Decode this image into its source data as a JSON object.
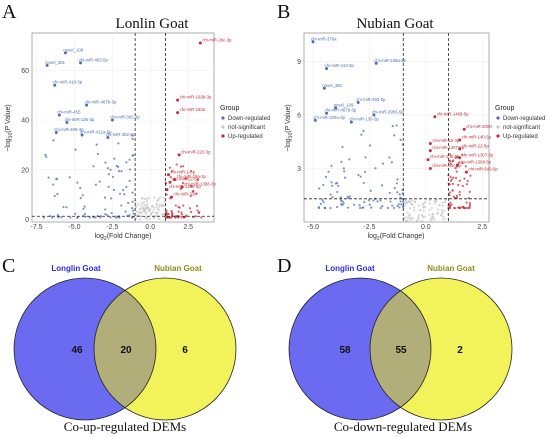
{
  "colors": {
    "down": "#4c72b0",
    "ns": "#c8c8c8",
    "up": "#c0313b",
    "venn_left": "#6b6bf2",
    "venn_right": "#f2f25a",
    "venn_overlap": "#b1ae7a",
    "venn_left_label": "#2a2ae6",
    "venn_right_label": "#8e8e1a"
  },
  "panels": {
    "a": {
      "letter": "A",
      "title": "Lonlin Goat"
    },
    "b": {
      "letter": "B",
      "title": "Nubian Goat"
    },
    "c": {
      "letter": "C",
      "caption": "Co-up-regulated DEMs"
    },
    "d": {
      "letter": "D",
      "caption": "Co-down-regulated DEMs"
    }
  },
  "legend": {
    "title": "Group",
    "entries": [
      "Down-regulated",
      "not-significant",
      "Up-regulated"
    ]
  },
  "chart_data": [
    {
      "type": "scatter",
      "title": "Lonlin Goat",
      "xlabel": "log2(Fold Change)",
      "ylabel": "-log10(P Value)",
      "xlim": [
        -7.8,
        4.2
      ],
      "ylim": [
        -1,
        75
      ],
      "x_ticks": [
        -7.5,
        -5.0,
        -2.5,
        0.0,
        2.5
      ],
      "y_ticks": [
        0,
        20,
        40,
        60
      ],
      "thresholds": {
        "x": [
          -1,
          1
        ],
        "y": 1.3
      },
      "labeled_points": [
        {
          "x": 3.3,
          "y": 71,
          "label": "chi-miR-29c-3p",
          "group": "Up-regulated"
        },
        {
          "x": 1.8,
          "y": 48,
          "label": "chi-miR-193b-3p",
          "group": "Up-regulated"
        },
        {
          "x": 1.8,
          "y": 43,
          "label": "chi-miR-193a",
          "group": "Up-regulated"
        },
        {
          "x": 1.9,
          "y": 26,
          "label": "chi-miR-222-3p",
          "group": "Up-regulated"
        },
        {
          "x": 1.2,
          "y": 18,
          "label": "chi-miR-1-3p",
          "group": "Up-regulated"
        },
        {
          "x": 1.6,
          "y": 16,
          "label": "chi-miR-29a-3p",
          "group": "Up-regulated"
        },
        {
          "x": 1.3,
          "y": 15,
          "label": "chi-miR-22-5p",
          "group": "Up-regulated"
        },
        {
          "x": 2.1,
          "y": 13,
          "label": "chi-miR-1388-3p",
          "group": "Up-regulated"
        },
        {
          "x": 1.1,
          "y": 12,
          "label": "chi-miR-1388-5p",
          "group": "Up-regulated"
        },
        {
          "x": 1.4,
          "y": 9,
          "label": "chi-miR-338",
          "group": "Up-regulated"
        },
        {
          "x": -5.6,
          "y": 67,
          "label": "novel_109",
          "group": "Down-regulated"
        },
        {
          "x": -6.8,
          "y": 62,
          "label": "novel_381",
          "group": "Down-regulated"
        },
        {
          "x": -4.6,
          "y": 63,
          "label": "chi-miR-493-5p",
          "group": "Down-regulated"
        },
        {
          "x": -6.3,
          "y": 54,
          "label": "chi-miR-410-3p",
          "group": "Down-regulated"
        },
        {
          "x": -4.2,
          "y": 46,
          "label": "chi-miR-487b-3p",
          "group": "Down-regulated"
        },
        {
          "x": -6.0,
          "y": 42,
          "label": "chi-miR-455",
          "group": "Down-regulated"
        },
        {
          "x": -5.5,
          "y": 39,
          "label": "chi-miR-136-3p",
          "group": "Down-regulated"
        },
        {
          "x": -2.5,
          "y": 40,
          "label": "chi-miR-382-3p",
          "group": "Down-regulated"
        },
        {
          "x": -6.2,
          "y": 35,
          "label": "chi-miR-409-3p",
          "group": "Down-regulated"
        },
        {
          "x": -4.5,
          "y": 34,
          "label": "chi-miR-411a-5p",
          "group": "Down-regulated"
        },
        {
          "x": -2.8,
          "y": 33,
          "label": "chi-miR-382-5p",
          "group": "Down-regulated"
        }
      ]
    },
    {
      "type": "scatter",
      "title": "Nubian Goat",
      "xlabel": "log2(Fold Change)",
      "ylabel": "-log10(P Value)",
      "xlim": [
        -5.4,
        2.8
      ],
      "ylim": [
        0,
        10.6
      ],
      "x_ticks": [
        -5.0,
        -2.5,
        0.0,
        2.5
      ],
      "y_ticks": [
        3,
        6,
        9
      ],
      "thresholds": {
        "x": [
          -1,
          1
        ],
        "y": 1.3
      },
      "labeled_points": [
        {
          "x": -5.0,
          "y": 10.1,
          "label": "chi-miR-376a",
          "group": "Down-regulated"
        },
        {
          "x": -4.4,
          "y": 8.6,
          "label": "chi-miR-410-3p",
          "group": "Down-regulated"
        },
        {
          "x": -2.2,
          "y": 8.9,
          "label": "chi-miR-199a-3p",
          "group": "Down-regulated"
        },
        {
          "x": -4.5,
          "y": 7.5,
          "label": "novel_381",
          "group": "Down-regulated"
        },
        {
          "x": -3.0,
          "y": 6.7,
          "label": "chi-miR-493-5p",
          "group": "Down-regulated"
        },
        {
          "x": -4.0,
          "y": 6.4,
          "label": "novel_109",
          "group": "Down-regulated"
        },
        {
          "x": -4.4,
          "y": 6.1,
          "label": "chi-miR-487b-3p",
          "group": "Down-regulated"
        },
        {
          "x": -2.3,
          "y": 6.0,
          "label": "chi-miR-3955-5p",
          "group": "Down-regulated"
        },
        {
          "x": -4.9,
          "y": 5.7,
          "label": "chi-miR-329a-3p",
          "group": "Down-regulated"
        },
        {
          "x": -3.3,
          "y": 5.6,
          "label": "chi-miR-136-3p",
          "group": "Down-regulated"
        },
        {
          "x": 0.4,
          "y": 5.9,
          "label": "chi-miR-1468-5p",
          "group": "Up-regulated"
        },
        {
          "x": 1.5,
          "y": 4.6,
          "label": "chi-miR-140-5p",
          "group": "Up-regulated"
        },
        {
          "x": 1.7,
          "y": 5.2,
          "label": "chi-miR-2000",
          "group": "Up-regulated"
        },
        {
          "x": 0.2,
          "y": 4.4,
          "label": "chi-miR-22-3p",
          "group": "Up-regulated"
        },
        {
          "x": 0.2,
          "y": 4.0,
          "label": "chi-miR-1307-5p",
          "group": "Up-regulated"
        },
        {
          "x": 1.5,
          "y": 4.1,
          "label": "chi-miR-22-5p",
          "group": "Up-regulated"
        },
        {
          "x": 0.1,
          "y": 3.5,
          "label": "chi-miR-145-5p",
          "group": "Up-regulated"
        },
        {
          "x": 1.5,
          "y": 3.6,
          "label": "chi-miR-1307-3p",
          "group": "Up-regulated"
        },
        {
          "x": 0.2,
          "y": 3.0,
          "label": "chi-miR-30c-5p",
          "group": "Up-regulated"
        },
        {
          "x": 1.4,
          "y": 3.2,
          "label": "chi-miR-1388-5p",
          "group": "Up-regulated"
        },
        {
          "x": 1.8,
          "y": 2.8,
          "label": "chi-miR-543-5p",
          "group": "Up-regulated"
        }
      ]
    },
    {
      "type": "venn",
      "sets": [
        "Longlin Goat",
        "Nubian Goat"
      ],
      "only_left": 46,
      "overlap": 20,
      "only_right": 6,
      "caption": "Co-up-regulated DEMs"
    },
    {
      "type": "venn",
      "sets": [
        "Longlin Goat",
        "Nubian Goat"
      ],
      "only_left": 58,
      "overlap": 55,
      "only_right": 2,
      "caption": "Co-down-regulated DEMs"
    }
  ]
}
